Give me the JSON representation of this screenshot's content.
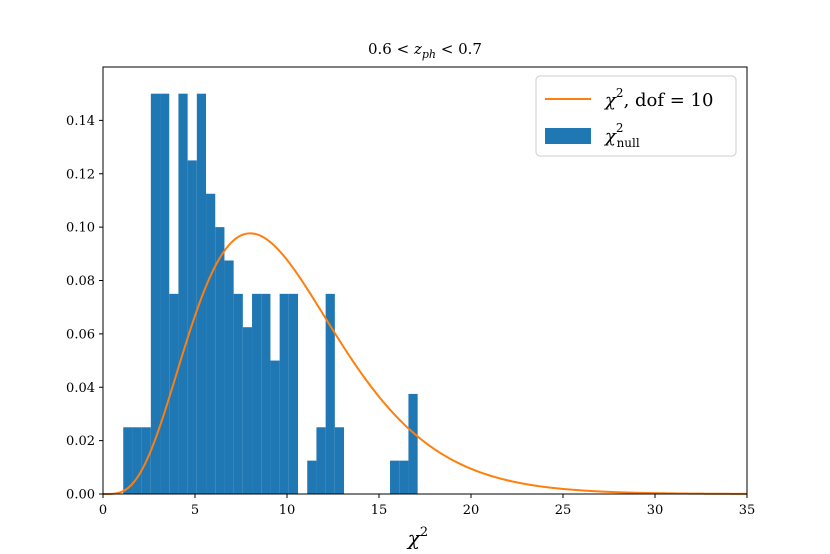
{
  "chart_data": {
    "type": "bar",
    "title": "0.6 < z_ph < 0.7",
    "title_parts": {
      "lhs": "0.6 < ",
      "var": "z",
      "sub": "ph",
      "rhs": " < 0.7"
    },
    "xlabel": "χ",
    "xlabel_sup": "2",
    "xlim": [
      0,
      35
    ],
    "ylim": [
      0,
      0.16
    ],
    "xticks": [
      0,
      5,
      10,
      15,
      20,
      25,
      30,
      35
    ],
    "yticks": [
      0.0,
      0.02,
      0.04,
      0.06,
      0.08,
      0.1,
      0.12,
      0.14
    ],
    "xtick_labels": [
      "0",
      "5",
      "10",
      "15",
      "20",
      "25",
      "30",
      "35"
    ],
    "ytick_labels": [
      "0.00",
      "0.02",
      "0.04",
      "0.06",
      "0.08",
      "0.10",
      "0.12",
      "0.14"
    ],
    "grid": false,
    "legend_position": "top-right",
    "colors": {
      "histogram": "#1f77b4",
      "curve": "#ff7f0e"
    },
    "series": [
      {
        "kind": "histogram",
        "legend_text": "χ",
        "legend_sup": "2",
        "legend_sub": "null",
        "bin_width": 0.5,
        "bin_left_edges": [
          1.1,
          1.6,
          2.1,
          2.6,
          3.1,
          3.6,
          4.1,
          4.6,
          5.1,
          5.6,
          6.1,
          6.6,
          7.1,
          7.6,
          8.1,
          8.6,
          9.1,
          9.6,
          10.1,
          10.6,
          11.1,
          11.6,
          12.1,
          12.6,
          13.1,
          13.6,
          14.1,
          14.6,
          15.1,
          15.6,
          16.1,
          16.6,
          17.1,
          17.6
        ],
        "values": [
          0.025,
          0.025,
          0.025,
          0.15,
          0.15,
          0.075,
          0.15,
          0.125,
          0.15,
          0.1125,
          0.1,
          0.0875,
          0.075,
          0.0625,
          0.075,
          0.075,
          0.05,
          0.075,
          0.075,
          0.0,
          0.0125,
          0.025,
          0.075,
          0.025,
          0.0,
          0.0,
          0.0,
          0.0,
          0.0,
          0.0125,
          0.0125,
          0.0375,
          0.0,
          0.0
        ]
      },
      {
        "kind": "line",
        "legend_text": "χ",
        "legend_sup": "2",
        "legend_rest": ", dof = 10",
        "dof": 10
      }
    ]
  }
}
